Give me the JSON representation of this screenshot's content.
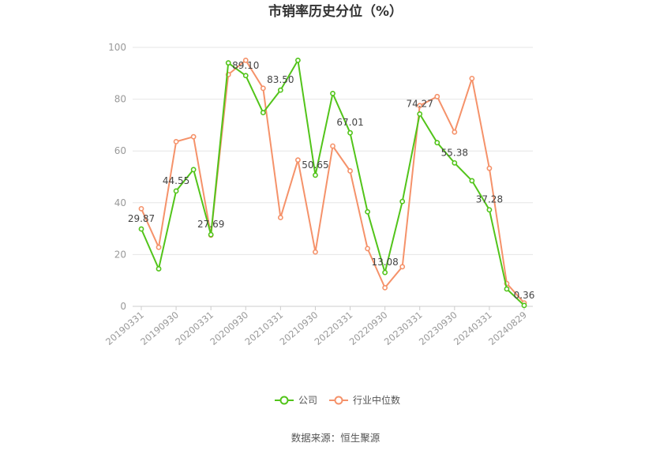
{
  "chart_data": {
    "type": "line",
    "title": "市销率历史分位（%）",
    "ylim": [
      0,
      100
    ],
    "yticks": [
      0,
      20,
      40,
      60,
      80,
      100
    ],
    "x_tick_labels": [
      "20190331",
      "20190930",
      "20200331",
      "20200930",
      "20210331",
      "20210930",
      "20220331",
      "20220930",
      "20230331",
      "20230930",
      "20240331",
      "20240829"
    ],
    "grid": true,
    "legend_position": "bottom",
    "series": [
      {
        "name": "公司",
        "color": "#52c41a",
        "values": [
          29.87,
          14.5,
          44.55,
          52.8,
          27.69,
          94.0,
          89.1,
          74.8,
          83.5,
          95.0,
          50.65,
          82.2,
          67.01,
          36.5,
          13.08,
          40.5,
          74.27,
          63.2,
          55.38,
          48.5,
          37.28,
          6.7,
          0.36
        ]
      },
      {
        "name": "行业中位数",
        "color": "#f5926a",
        "values": [
          37.7,
          22.8,
          63.6,
          65.5,
          27.5,
          89.5,
          95.0,
          84.2,
          34.3,
          56.5,
          21.0,
          61.9,
          52.3,
          22.3,
          7.2,
          15.3,
          77.5,
          81.0,
          67.3,
          88.0,
          53.3,
          8.8,
          1.3
        ]
      }
    ],
    "data_labels": [
      {
        "index": 0,
        "text": "29.87"
      },
      {
        "index": 2,
        "text": "44.55"
      },
      {
        "index": 4,
        "text": "27.69"
      },
      {
        "index": 6,
        "text": "89.10"
      },
      {
        "index": 8,
        "text": "83.50"
      },
      {
        "index": 10,
        "text": "50.65"
      },
      {
        "index": 12,
        "text": "67.01"
      },
      {
        "index": 14,
        "text": "13.08"
      },
      {
        "index": 16,
        "text": "74.27"
      },
      {
        "index": 18,
        "text": "55.38"
      },
      {
        "index": 20,
        "text": "37.28"
      },
      {
        "index": 22,
        "text": "0.36"
      }
    ]
  },
  "footer": {
    "source": "数据来源：恒生聚源"
  }
}
